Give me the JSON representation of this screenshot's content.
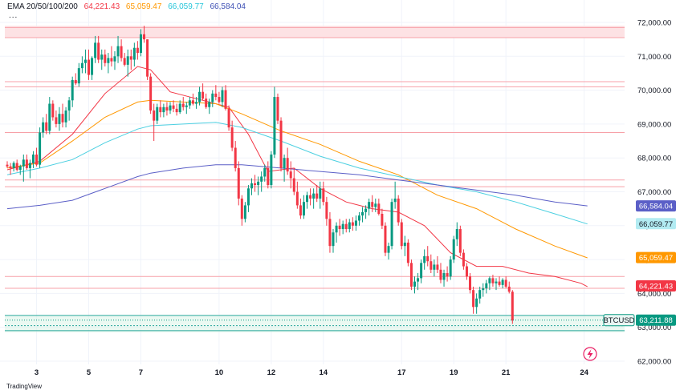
{
  "legend": {
    "title": "EMA 20/50/100/200",
    "ema20": "64,221.43",
    "ema50": "65,059.47",
    "ema100": "66,059.77",
    "ema200": "66,584.04",
    "more": "..."
  },
  "watermark": "TradingView",
  "colors": {
    "up": "#089981",
    "down": "#f23645",
    "ema20": "#f23645",
    "ema50": "#ff9800",
    "ema100": "#4dd0e1",
    "ema200": "#5b5fc7",
    "resistance_zone": "#fde2e4",
    "support_zone": "#d7f3e6"
  },
  "chart_data": {
    "type": "candlestick",
    "symbol": "BTCUSD",
    "last_price": "63,211.88",
    "ylim": [
      62000,
      72000
    ],
    "y_ticks": [
      "62,000.00",
      "63,000.00",
      "64,000.00",
      "65,000.00",
      "66,000.00",
      "67,000.00",
      "68,000.00",
      "69,000.00",
      "70,000.00",
      "71,000.00",
      "72,000.00"
    ],
    "x_ticks": [
      {
        "label": "3",
        "i": 9
      },
      {
        "label": "5",
        "i": 25
      },
      {
        "label": "7",
        "i": 41
      },
      {
        "label": "10",
        "i": 65
      },
      {
        "label": "12",
        "i": 81
      },
      {
        "label": "14",
        "i": 97
      },
      {
        "label": "17",
        "i": 121
      },
      {
        "label": "19",
        "i": 137
      },
      {
        "label": "21",
        "i": 153
      },
      {
        "label": "24",
        "i": 177
      }
    ],
    "ohlc": [
      [
        67800,
        67900,
        67700,
        67750
      ],
      [
        67750,
        67850,
        67500,
        67700
      ],
      [
        67700,
        67900,
        67600,
        67850
      ],
      [
        67850,
        67950,
        67600,
        67650
      ],
      [
        67650,
        67800,
        67500,
        67750
      ],
      [
        67750,
        68100,
        67300,
        67950
      ],
      [
        67950,
        68100,
        67650,
        67700
      ],
      [
        67700,
        67950,
        67400,
        67850
      ],
      [
        67850,
        68200,
        67700,
        68100
      ],
      [
        68100,
        68300,
        67750,
        67800
      ],
      [
        67800,
        68900,
        67700,
        68750
      ],
      [
        68750,
        69200,
        68600,
        69050
      ],
      [
        69050,
        69300,
        68700,
        68800
      ],
      [
        68800,
        69800,
        68700,
        69600
      ],
      [
        69600,
        69700,
        69100,
        69200
      ],
      [
        69200,
        69400,
        68900,
        69000
      ],
      [
        69000,
        69500,
        68800,
        69300
      ],
      [
        69300,
        69600,
        68900,
        69050
      ],
      [
        69050,
        69500,
        68900,
        69400
      ],
      [
        69400,
        69800,
        69100,
        69700
      ],
      [
        69700,
        70400,
        69500,
        70300
      ],
      [
        70300,
        70500,
        70150,
        70200
      ],
      [
        70200,
        70800,
        70100,
        70650
      ],
      [
        70650,
        71000,
        70500,
        70800
      ],
      [
        70800,
        71200,
        70500,
        70900
      ],
      [
        70900,
        71200,
        70300,
        70450
      ],
      [
        70450,
        71000,
        70300,
        70950
      ],
      [
        70950,
        71600,
        70800,
        71400
      ],
      [
        71400,
        71600,
        70800,
        70900
      ],
      [
        70900,
        71200,
        70600,
        71050
      ],
      [
        71050,
        71200,
        70700,
        70800
      ],
      [
        70800,
        71100,
        70500,
        70950
      ],
      [
        70950,
        71300,
        70700,
        70850
      ],
      [
        70850,
        71150,
        70600,
        71000
      ],
      [
        71000,
        71600,
        70800,
        71300
      ],
      [
        71300,
        71500,
        70850,
        70950
      ],
      [
        70950,
        71100,
        70700,
        70750
      ],
      [
        70750,
        71200,
        70400,
        71000
      ],
      [
        71000,
        71200,
        70600,
        70900
      ],
      [
        70900,
        71400,
        70700,
        71250
      ],
      [
        71250,
        71450,
        70900,
        71100
      ],
      [
        71100,
        71800,
        71000,
        71650
      ],
      [
        71650,
        71900,
        71400,
        71500
      ],
      [
        71500,
        71500,
        70300,
        70400
      ],
      [
        70400,
        70500,
        69300,
        69400
      ],
      [
        69400,
        69600,
        68500,
        69100
      ],
      [
        69100,
        69600,
        69000,
        69500
      ],
      [
        69500,
        69700,
        69200,
        69350
      ],
      [
        69350,
        69600,
        69200,
        69500
      ],
      [
        69500,
        69650,
        69250,
        69400
      ],
      [
        69400,
        69650,
        69300,
        69550
      ],
      [
        69550,
        69700,
        69350,
        69450
      ],
      [
        69450,
        69600,
        69250,
        69350
      ],
      [
        69350,
        69700,
        69300,
        69600
      ],
      [
        69600,
        69800,
        69400,
        69500
      ],
      [
        69500,
        69650,
        69300,
        69550
      ],
      [
        69550,
        69800,
        69450,
        69700
      ],
      [
        69700,
        69900,
        69550,
        69600
      ],
      [
        69600,
        69800,
        69450,
        69650
      ],
      [
        69650,
        70100,
        69550,
        69950
      ],
      [
        69950,
        70200,
        69700,
        69750
      ],
      [
        69750,
        69900,
        69450,
        69500
      ],
      [
        69500,
        69750,
        69300,
        69650
      ],
      [
        69650,
        70000,
        69500,
        69900
      ],
      [
        69900,
        70150,
        69700,
        69800
      ],
      [
        69800,
        69950,
        69600,
        69650
      ],
      [
        69650,
        70100,
        69500,
        70000
      ],
      [
        70000,
        70150,
        69400,
        69450
      ],
      [
        69450,
        69550,
        68800,
        68900
      ],
      [
        68900,
        69100,
        68200,
        68300
      ],
      [
        68300,
        68500,
        67600,
        67700
      ],
      [
        67700,
        67900,
        66600,
        66800
      ],
      [
        66800,
        66900,
        66000,
        66200
      ],
      [
        66200,
        66700,
        66100,
        66600
      ],
      [
        66600,
        67200,
        66400,
        67100
      ],
      [
        67100,
        67400,
        66900,
        67250
      ],
      [
        67250,
        67500,
        67000,
        67200
      ],
      [
        67200,
        67450,
        66900,
        67300
      ],
      [
        67300,
        67600,
        67000,
        67450
      ],
      [
        67450,
        67800,
        67300,
        67700
      ],
      [
        67700,
        67900,
        67100,
        67200
      ],
      [
        67200,
        68200,
        67100,
        68100
      ],
      [
        68100,
        70100,
        68000,
        69800
      ],
      [
        69800,
        69900,
        69000,
        69100
      ],
      [
        69100,
        69200,
        67600,
        67700
      ],
      [
        67700,
        68100,
        67300,
        68000
      ],
      [
        68000,
        68300,
        67500,
        67600
      ],
      [
        67600,
        67900,
        67100,
        67400
      ],
      [
        67400,
        67700,
        66900,
        67000
      ],
      [
        67000,
        67300,
        66500,
        66600
      ],
      [
        66600,
        66800,
        66200,
        66300
      ],
      [
        66300,
        66900,
        66200,
        66700
      ],
      [
        66700,
        67000,
        66500,
        66900
      ],
      [
        66900,
        67100,
        66600,
        66800
      ],
      [
        66800,
        67100,
        66500,
        66950
      ],
      [
        66950,
        67200,
        66700,
        66800
      ],
      [
        66800,
        67300,
        66500,
        67100
      ],
      [
        67100,
        67300,
        66600,
        66700
      ],
      [
        66700,
        66850,
        66000,
        66200
      ],
      [
        66200,
        66400,
        65200,
        65400
      ],
      [
        65400,
        65900,
        65200,
        65800
      ],
      [
        65800,
        66100,
        65500,
        66000
      ],
      [
        66000,
        66200,
        65700,
        65900
      ],
      [
        65900,
        66150,
        65750,
        66050
      ],
      [
        66050,
        66200,
        65800,
        65900
      ],
      [
        65900,
        66200,
        65800,
        66100
      ],
      [
        66100,
        66250,
        65850,
        66000
      ],
      [
        66000,
        66300,
        65850,
        66150
      ],
      [
        66150,
        66400,
        66000,
        66300
      ],
      [
        66300,
        66550,
        66100,
        66400
      ],
      [
        66400,
        66600,
        66200,
        66500
      ],
      [
        66500,
        66800,
        66300,
        66700
      ],
      [
        66700,
        66900,
        66400,
        66550
      ],
      [
        66550,
        66800,
        66400,
        66650
      ],
      [
        66650,
        66800,
        66300,
        66350
      ],
      [
        66350,
        66500,
        65900,
        66000
      ],
      [
        66000,
        66100,
        65100,
        65200
      ],
      [
        65200,
        65500,
        65000,
        65400
      ],
      [
        65400,
        66800,
        65300,
        66700
      ],
      [
        66700,
        67300,
        66500,
        66800
      ],
      [
        66800,
        66900,
        66000,
        66100
      ],
      [
        66100,
        66200,
        65300,
        65400
      ],
      [
        65400,
        65700,
        65100,
        65500
      ],
      [
        65500,
        65600,
        64800,
        64900
      ],
      [
        64900,
        65000,
        64100,
        64200
      ],
      [
        64200,
        64500,
        64000,
        64350
      ],
      [
        64350,
        64600,
        64100,
        64450
      ],
      [
        64450,
        65000,
        64300,
        64900
      ],
      [
        64900,
        65300,
        64700,
        65100
      ],
      [
        65100,
        65400,
        64800,
        64950
      ],
      [
        64950,
        65150,
        64600,
        64700
      ],
      [
        64700,
        65000,
        64500,
        64850
      ],
      [
        64850,
        65100,
        64600,
        64700
      ],
      [
        64700,
        64900,
        64300,
        64400
      ],
      [
        64400,
        64700,
        64200,
        64600
      ],
      [
        64600,
        64800,
        64350,
        64500
      ],
      [
        64500,
        65100,
        64400,
        65000
      ],
      [
        65000,
        65700,
        64900,
        65600
      ],
      [
        65600,
        66100,
        65400,
        65900
      ],
      [
        65900,
        66000,
        65100,
        65200
      ],
      [
        65200,
        65300,
        64700,
        64800
      ],
      [
        64800,
        64900,
        64400,
        64500
      ],
      [
        64500,
        64600,
        64000,
        64100
      ],
      [
        64100,
        64200,
        63400,
        63600
      ],
      [
        63600,
        64000,
        63400,
        63850
      ],
      [
        63850,
        64200,
        63700,
        64100
      ],
      [
        64100,
        64300,
        63900,
        64150
      ],
      [
        64150,
        64400,
        64000,
        64300
      ],
      [
        64300,
        64500,
        64100,
        64450
      ],
      [
        64450,
        64550,
        64200,
        64300
      ],
      [
        64300,
        64450,
        64100,
        64350
      ],
      [
        64350,
        64500,
        64200,
        64250
      ],
      [
        64250,
        64450,
        64150,
        64400
      ],
      [
        64400,
        64500,
        64150,
        64200
      ],
      [
        64200,
        64350,
        64000,
        64050
      ],
      [
        64050,
        64100,
        63100,
        63200
      ]
    ],
    "ema_series": [
      {
        "name": "EMA 20",
        "color": "#f23645",
        "pts": [
          [
            0,
            67650
          ],
          [
            10,
            67900
          ],
          [
            20,
            68700
          ],
          [
            30,
            69900
          ],
          [
            40,
            70700
          ],
          [
            44,
            70600
          ],
          [
            50,
            69950
          ],
          [
            60,
            69700
          ],
          [
            68,
            69500
          ],
          [
            74,
            68700
          ],
          [
            80,
            67600
          ],
          [
            88,
            67700
          ],
          [
            96,
            67100
          ],
          [
            104,
            66700
          ],
          [
            112,
            66500
          ],
          [
            120,
            66400
          ],
          [
            128,
            66000
          ],
          [
            136,
            65200
          ],
          [
            144,
            64800
          ],
          [
            152,
            64800
          ],
          [
            160,
            64600
          ],
          [
            168,
            64500
          ],
          [
            176,
            64300
          ],
          [
            178,
            64200
          ]
        ]
      },
      {
        "name": "EMA 50",
        "color": "#ff9800",
        "pts": [
          [
            0,
            67700
          ],
          [
            10,
            67850
          ],
          [
            20,
            68500
          ],
          [
            30,
            69200
          ],
          [
            40,
            69650
          ],
          [
            44,
            69700
          ],
          [
            54,
            69650
          ],
          [
            64,
            69600
          ],
          [
            72,
            69300
          ],
          [
            84,
            68800
          ],
          [
            96,
            68400
          ],
          [
            108,
            67900
          ],
          [
            120,
            67500
          ],
          [
            132,
            66900
          ],
          [
            144,
            66500
          ],
          [
            156,
            65900
          ],
          [
            168,
            65400
          ],
          [
            178,
            65050
          ]
        ]
      },
      {
        "name": "EMA 100",
        "color": "#4dd0e1",
        "pts": [
          [
            0,
            67500
          ],
          [
            10,
            67700
          ],
          [
            20,
            67950
          ],
          [
            30,
            68450
          ],
          [
            40,
            68850
          ],
          [
            44,
            68950
          ],
          [
            54,
            69000
          ],
          [
            64,
            69050
          ],
          [
            72,
            68900
          ],
          [
            84,
            68500
          ],
          [
            96,
            68050
          ],
          [
            108,
            67700
          ],
          [
            120,
            67450
          ],
          [
            132,
            67200
          ],
          [
            144,
            67000
          ],
          [
            156,
            66700
          ],
          [
            168,
            66350
          ],
          [
            178,
            66050
          ]
        ]
      },
      {
        "name": "EMA 200",
        "color": "#5b5fc7",
        "pts": [
          [
            0,
            66500
          ],
          [
            10,
            66600
          ],
          [
            20,
            66750
          ],
          [
            30,
            67100
          ],
          [
            40,
            67450
          ],
          [
            44,
            67550
          ],
          [
            54,
            67700
          ],
          [
            64,
            67800
          ],
          [
            72,
            67800
          ],
          [
            84,
            67700
          ],
          [
            96,
            67600
          ],
          [
            108,
            67500
          ],
          [
            120,
            67350
          ],
          [
            132,
            67200
          ],
          [
            144,
            67050
          ],
          [
            156,
            66900
          ],
          [
            168,
            66700
          ],
          [
            178,
            66584
          ]
        ]
      }
    ],
    "price_tags": [
      {
        "label": "66,584.04",
        "value": 66584.04,
        "bg": "#5b5fc7",
        "fg": "#ffffff"
      },
      {
        "label": "66,059.77",
        "value": 66059.77,
        "bg": "#b2ebf2",
        "fg": "#131722"
      },
      {
        "label": "65,059.47",
        "value": 65059.47,
        "bg": "#ff9800",
        "fg": "#ffffff"
      },
      {
        "label": "64,221.43",
        "value": 64221.43,
        "bg": "#f23645",
        "fg": "#ffffff"
      }
    ],
    "resistance_lines": [
      71550,
      71850,
      70250,
      70100,
      68750,
      67350,
      67150,
      64500,
      64150
    ],
    "resistance_zone": [
      71550,
      71900
    ],
    "support_lines": [
      63350,
      62900,
      63050
    ],
    "support_zone": [
      62850,
      63350
    ]
  }
}
